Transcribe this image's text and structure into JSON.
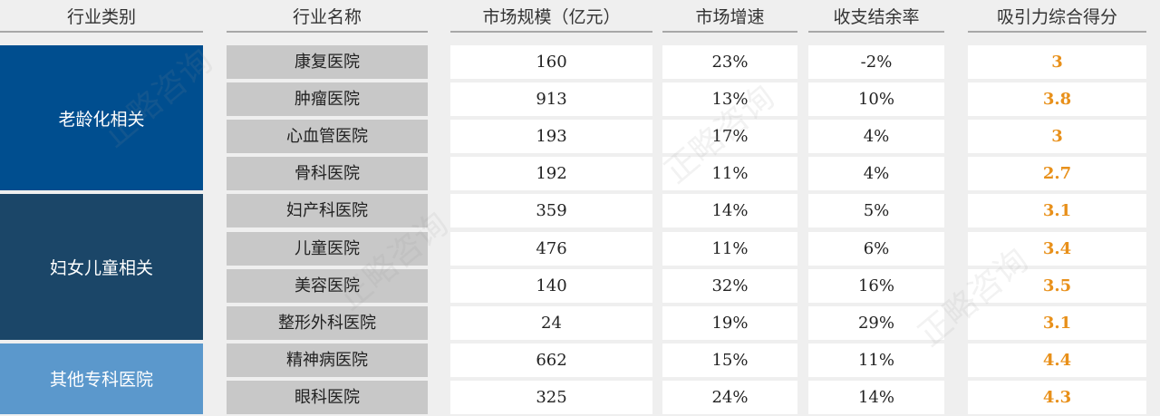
{
  "headers": [
    "行业类别",
    "行业名称",
    "市场规模（亿元）",
    "市场增速",
    "收支结余率",
    "吸引力综合得分"
  ],
  "categories": [
    {
      "label": "老龄化相关",
      "color": "#004e8f"
    },
    {
      "label": "妇女儿童相关",
      "color": "#1b4668"
    },
    {
      "label": "其他专科医院",
      "color": "#5b98cc"
    }
  ],
  "rows": [
    {
      "name": "康复医院",
      "size": "160",
      "growth": "23%",
      "surplus": "-2%",
      "score": "3"
    },
    {
      "name": "肿瘤医院",
      "size": "913",
      "growth": "13%",
      "surplus": "10%",
      "score": "3.8"
    },
    {
      "name": "心血管医院",
      "size": "193",
      "growth": "17%",
      "surplus": "4%",
      "score": "3"
    },
    {
      "name": "骨科医院",
      "size": "192",
      "growth": "11%",
      "surplus": "4%",
      "score": "2.7"
    },
    {
      "name": "妇产科医院",
      "size": "359",
      "growth": "14%",
      "surplus": "5%",
      "score": "3.1"
    },
    {
      "name": "儿童医院",
      "size": "476",
      "growth": "11%",
      "surplus": "6%",
      "score": "3.4"
    },
    {
      "name": "美容医院",
      "size": "140",
      "growth": "32%",
      "surplus": "16%",
      "score": "3.5"
    },
    {
      "name": "整形外科医院",
      "size": "24",
      "growth": "19%",
      "surplus": "29%",
      "score": "3.1"
    },
    {
      "name": "精神病医院",
      "size": "662",
      "growth": "15%",
      "surplus": "11%",
      "score": "4.4"
    },
    {
      "name": "眼科医院",
      "size": "325",
      "growth": "24%",
      "surplus": "14%",
      "score": "4.3"
    }
  ],
  "watermark": "正略咨询",
  "score_color": "#e8901a"
}
